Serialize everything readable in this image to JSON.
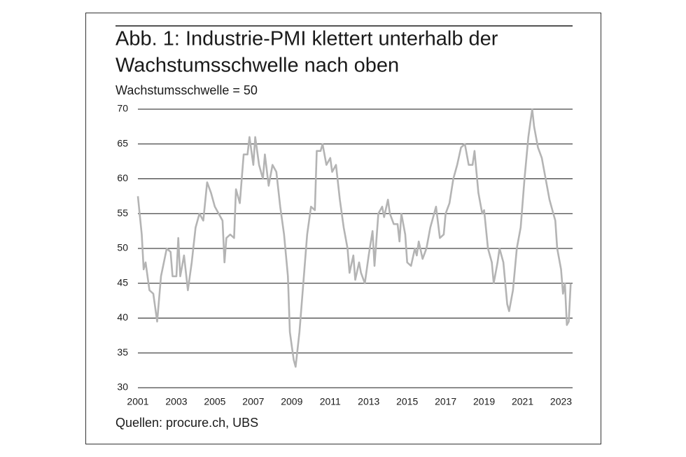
{
  "chart_data": {
    "type": "line",
    "title_lines": [
      "Abb. 1: Industrie-PMI klettert unterhalb der",
      "Wachstumsschwelle nach oben"
    ],
    "subtitle": "Wachstumsschwelle = 50",
    "source": "Quellen: procure.ch, UBS",
    "xlim": [
      2001,
      2023.6
    ],
    "xticks": [
      2001,
      2003,
      2005,
      2007,
      2009,
      2011,
      2013,
      2015,
      2017,
      2019,
      2021,
      2023
    ],
    "ylim": [
      30,
      70
    ],
    "yticks": [
      30,
      35,
      40,
      45,
      50,
      55,
      60,
      65,
      70
    ],
    "grid": true,
    "series": [
      {
        "color": "#b4b4b4",
        "x": [
          2001.0,
          2001.2,
          2001.3,
          2001.4,
          2001.6,
          2001.8,
          2002.0,
          2002.2,
          2002.5,
          2002.7,
          2002.8,
          2003.0,
          2003.1,
          2003.2,
          2003.4,
          2003.6,
          2003.8,
          2004.0,
          2004.2,
          2004.4,
          2004.6,
          2004.8,
          2005.0,
          2005.2,
          2005.4,
          2005.5,
          2005.6,
          2005.8,
          2006.0,
          2006.1,
          2006.3,
          2006.5,
          2006.7,
          2006.8,
          2007.0,
          2007.1,
          2007.3,
          2007.5,
          2007.6,
          2007.8,
          2008.0,
          2008.2,
          2008.4,
          2008.6,
          2008.8,
          2008.9,
          2009.0,
          2009.1,
          2009.2,
          2009.4,
          2009.6,
          2009.8,
          2010.0,
          2010.2,
          2010.3,
          2010.5,
          2010.6,
          2010.8,
          2011.0,
          2011.1,
          2011.3,
          2011.5,
          2011.7,
          2011.9,
          2012.0,
          2012.2,
          2012.3,
          2012.5,
          2012.6,
          2012.8,
          2013.0,
          2013.2,
          2013.3,
          2013.5,
          2013.7,
          2013.8,
          2014.0,
          2014.1,
          2014.3,
          2014.5,
          2014.6,
          2014.7,
          2014.9,
          2015.0,
          2015.2,
          2015.4,
          2015.5,
          2015.6,
          2015.8,
          2016.0,
          2016.2,
          2016.4,
          2016.5,
          2016.7,
          2016.9,
          2017.0,
          2017.2,
          2017.4,
          2017.6,
          2017.8,
          2018.0,
          2018.2,
          2018.4,
          2018.5,
          2018.7,
          2018.9,
          2019.0,
          2019.2,
          2019.4,
          2019.5,
          2019.7,
          2019.8,
          2020.0,
          2020.2,
          2020.3,
          2020.5,
          2020.7,
          2020.9,
          2021.1,
          2021.3,
          2021.4,
          2021.5,
          2021.6,
          2021.8,
          2022.0,
          2022.2,
          2022.4,
          2022.6,
          2022.7,
          2022.8,
          2023.0,
          2023.1,
          2023.2,
          2023.3,
          2023.4,
          2023.5
        ],
        "values": [
          57.5,
          52,
          47,
          48,
          44,
          43.5,
          39.5,
          46,
          50,
          49.5,
          46,
          46,
          51.5,
          46,
          49,
          44,
          48,
          53,
          55,
          54,
          59.5,
          58,
          56,
          55,
          54,
          48,
          51.5,
          52,
          51.5,
          58.5,
          56.5,
          63.5,
          63.5,
          66,
          62,
          66,
          62,
          60,
          63.5,
          59,
          62,
          61,
          56,
          52,
          46,
          38,
          36,
          34,
          33,
          38,
          45,
          52,
          56,
          55.5,
          64,
          64,
          65,
          62,
          63,
          61,
          62,
          57,
          53,
          50,
          46.5,
          49,
          45.5,
          48,
          46.5,
          45,
          49,
          52.5,
          47.5,
          55,
          56,
          54.5,
          57,
          55,
          53.5,
          53.5,
          51,
          55,
          52,
          48,
          47.5,
          50,
          49,
          51,
          48.5,
          50,
          53,
          55,
          56,
          51.5,
          52,
          55,
          56.5,
          60,
          62,
          64.5,
          65,
          62,
          62,
          64,
          58,
          55,
          55.5,
          50,
          48,
          45,
          48,
          50,
          48,
          42,
          41,
          44,
          50,
          53,
          60,
          66,
          68,
          70,
          67.5,
          64.5,
          63,
          60,
          57,
          55,
          54,
          50,
          47,
          43.5,
          45,
          39,
          39.5,
          45
        ]
      }
    ]
  }
}
